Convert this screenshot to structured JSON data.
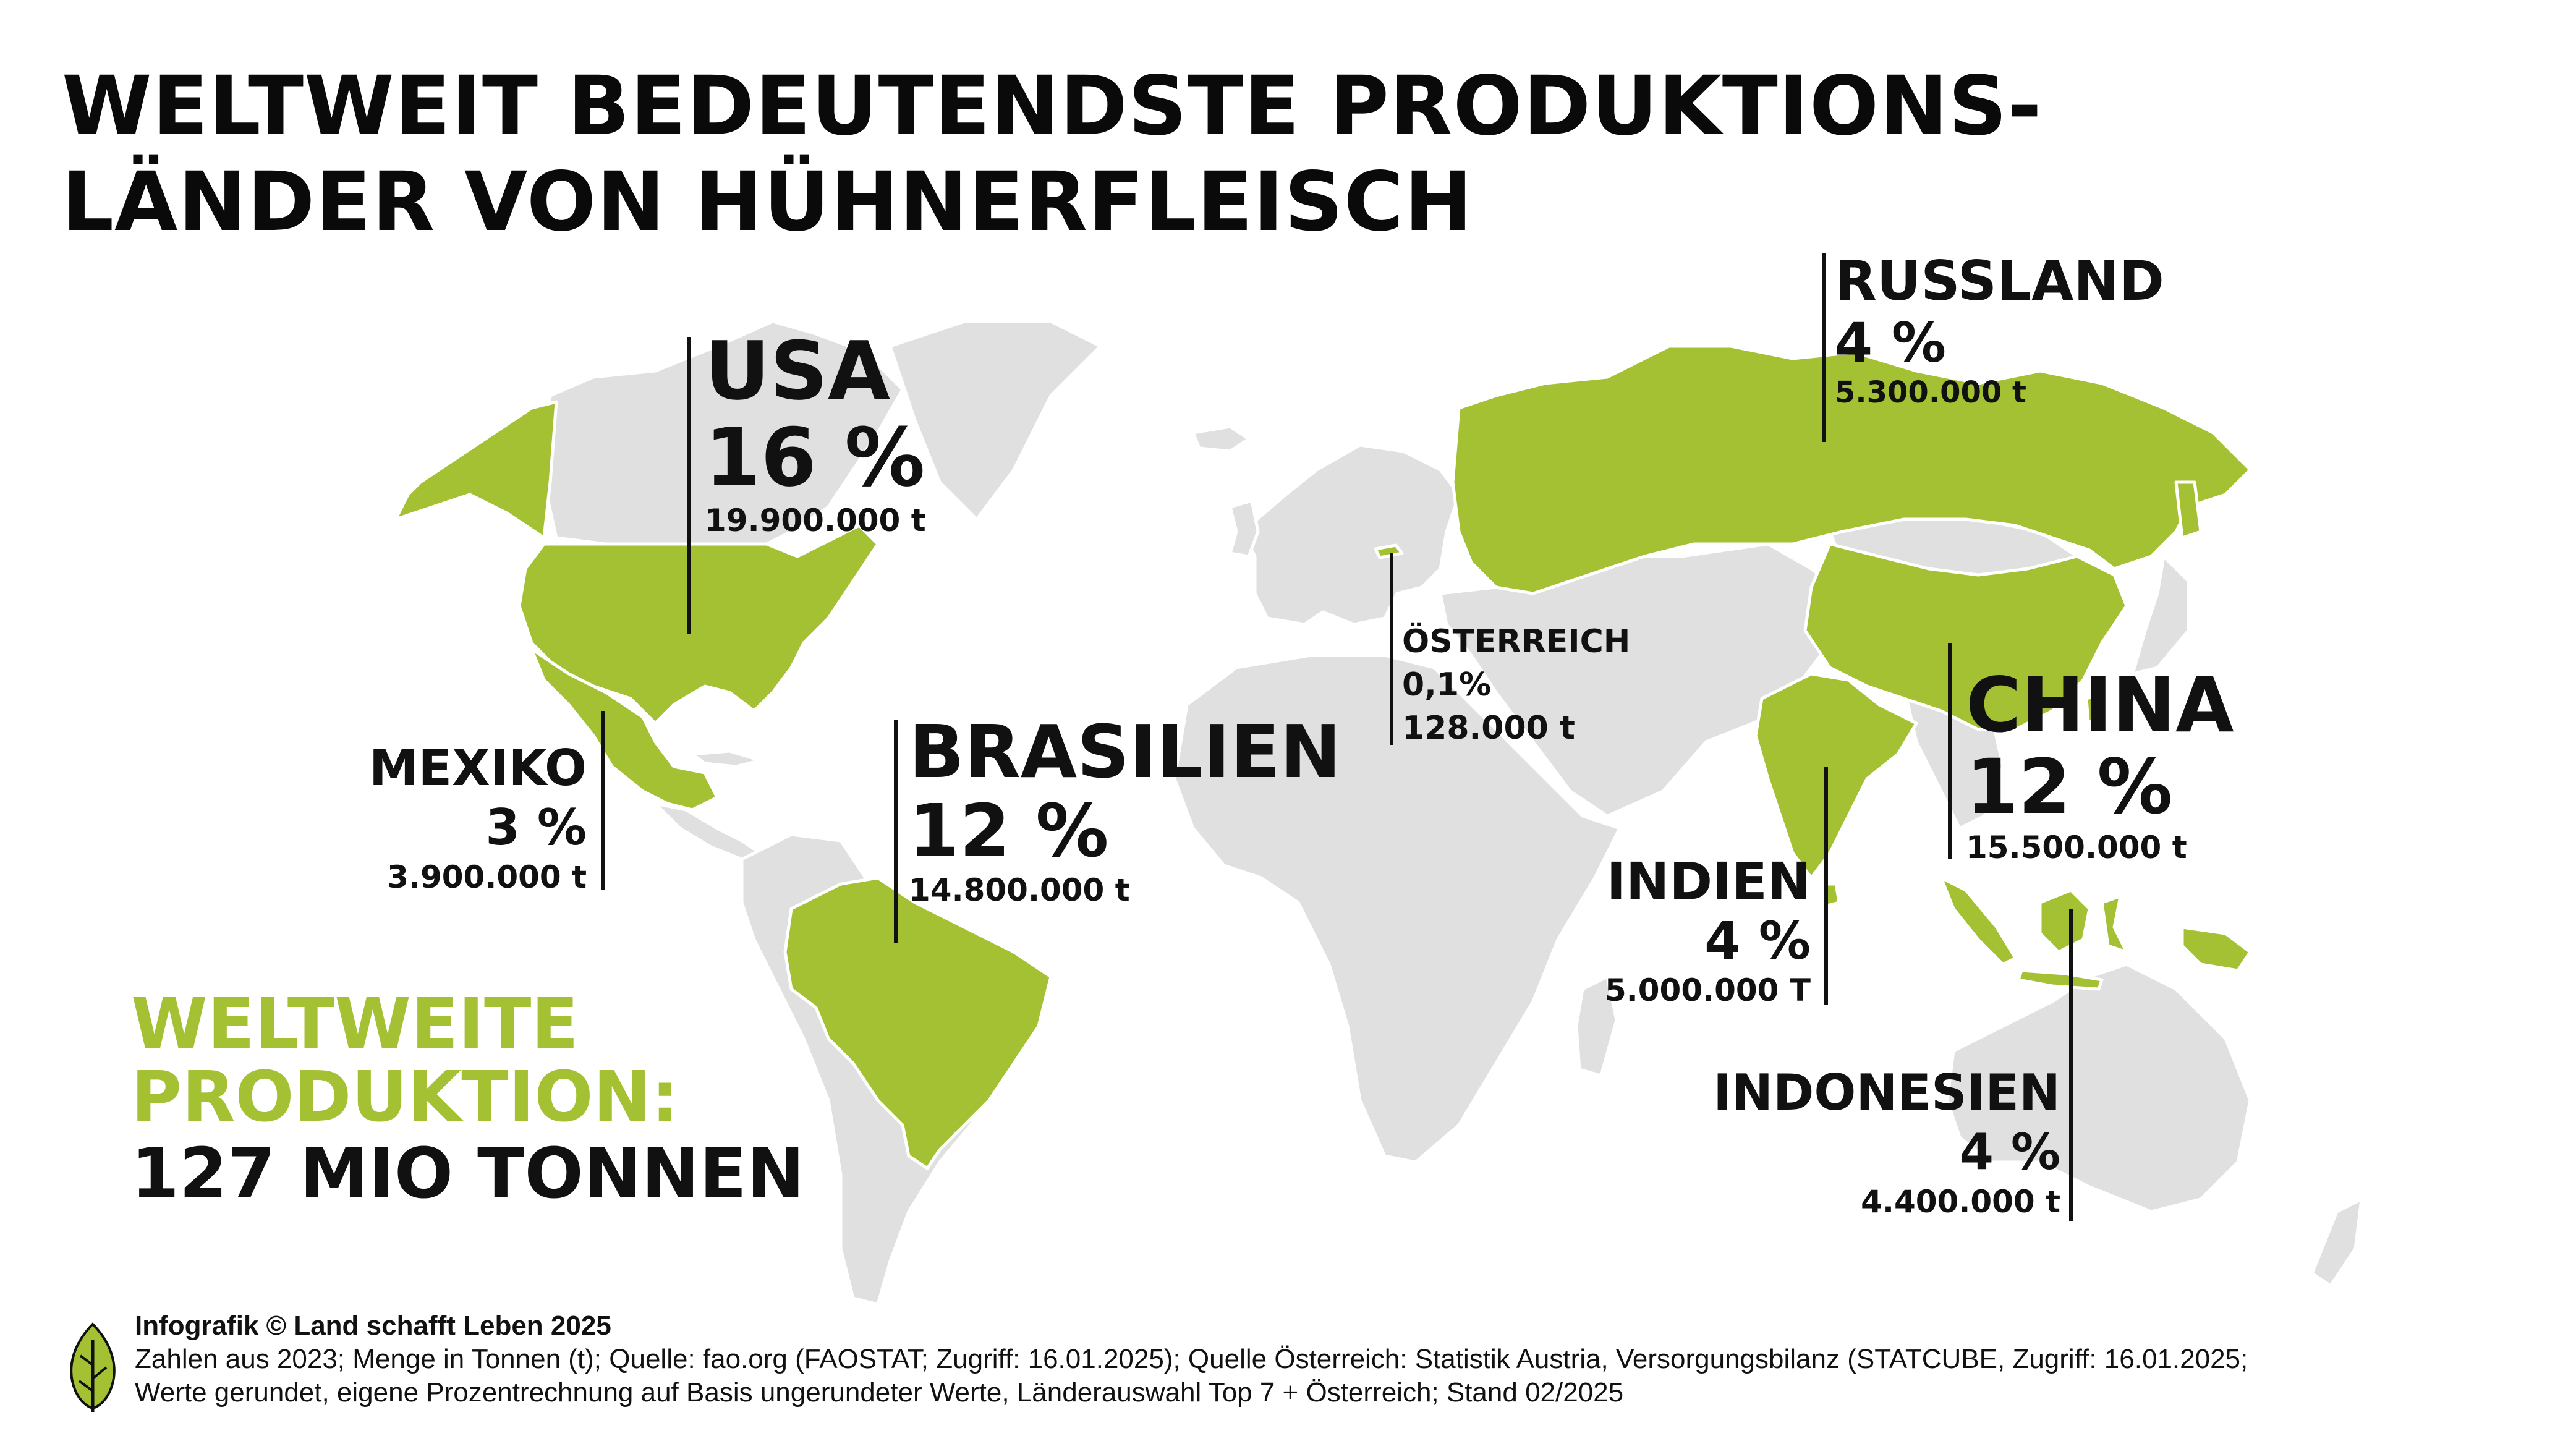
{
  "title": {
    "line1": "WELTWEIT BEDEUTENDSTE PRODUKTIONS-",
    "line2": "LÄNDER VON HÜHNERFLEISCH"
  },
  "colors": {
    "highlight": "#a4c134",
    "land": "#e0e0e0",
    "text": "#111111"
  },
  "countries": {
    "usa": {
      "name": "USA",
      "share": "16 %",
      "tons": "19.900.000 t"
    },
    "russland": {
      "name": "RUSSLAND",
      "share": "4 %",
      "tons": "5.300.000 t"
    },
    "oesterreich": {
      "name": "ÖSTERREICH",
      "share": "0,1%",
      "tons": "128.000 t"
    },
    "china": {
      "name": "CHINA",
      "share": "12 %",
      "tons": "15.500.000 t"
    },
    "mexiko": {
      "name": "MEXIKO",
      "share": "3 %",
      "tons": "3.900.000 t"
    },
    "brasilien": {
      "name": "BRASILIEN",
      "share": "12 %",
      "tons": "14.800.000 t"
    },
    "indien": {
      "name": "INDIEN",
      "share": "4 %",
      "tons": "5.000.000 T"
    },
    "indonesien": {
      "name": "INDONESIEN",
      "share": "4 %",
      "tons": "4.400.000 t"
    }
  },
  "total": {
    "line1": "WELTWEITE",
    "line2": "PRODUKTION:",
    "line3": "127 MIO TONNEN"
  },
  "footer": {
    "copyright": "Infografik © Land schafft Leben 2025",
    "source1": "Zahlen aus 2023; Menge in Tonnen (t); Quelle: fao.org (FAOSTAT; Zugriff: 16.01.2025); Quelle Österreich: Statistik Austria, Versorgungsbilanz (STATCUBE, Zugriff: 16.01.2025;",
    "source2": "Werte gerundet, eigene Prozentrechnung auf Basis ungerundeter Werte, Länderauswahl Top 7 + Österreich; Stand 02/2025",
    "logo_icon": "leaf-logo"
  }
}
